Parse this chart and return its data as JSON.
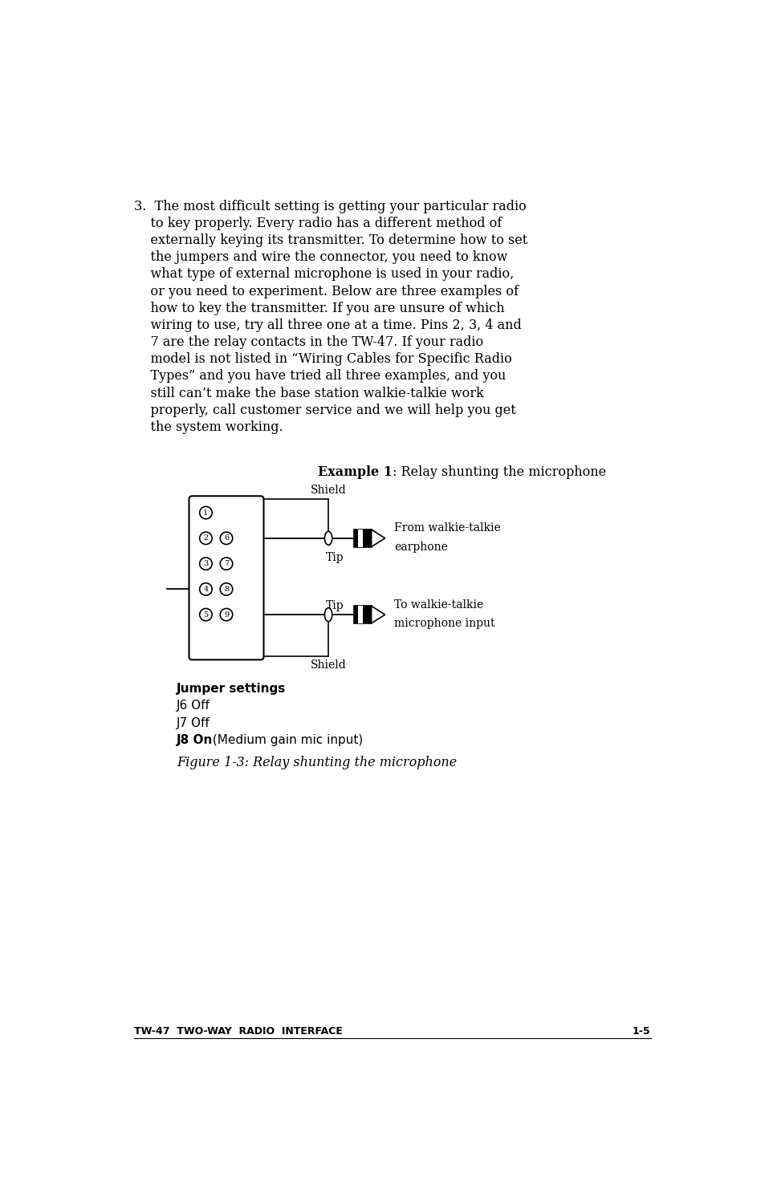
{
  "bg_color": "#ffffff",
  "page_width": 9.54,
  "page_height": 14.82,
  "body_lines": [
    "3.  The most difficult setting is getting your particular radio",
    "    to key properly. Every radio has a different method of",
    "    externally keying its transmitter. To determine how to set",
    "    the jumpers and wire the connector, you need to know",
    "    what type of external microphone is used in your radio,",
    "    or you need to experiment. Below are three examples of",
    "    how to key the transmitter. If you are unsure of which",
    "    wiring to use, try all three one at a time. Pins 2, 3, 4 and",
    "    7 are the relay contacts in the TW-47. If your radio",
    "    model is not listed in “Wiring Cables for Specific Radio",
    "    Types” and you have tried all three examples, and you",
    "    still can’t make the base station walkie-talkie work",
    "    properly, call customer service and we will help you get",
    "    the system working."
  ],
  "example_label_bold": "Example 1",
  "example_label_rest": ": Relay shunting the microphone",
  "jumper_title": "Jumper settings",
  "jumper_lines": [
    "J6 Off",
    "J7 Off",
    "J8 On (Medium gain mic input)"
  ],
  "figure_caption": "Figure 1-3: Relay shunting the microphone",
  "footer_left": "TW-47  TWO-WAY  RADIO  INTERFACE",
  "footer_right": "1-5",
  "shield_top": "Shield",
  "tip_top": "Tip",
  "shield_bottom": "Shield",
  "tip_bottom": "Tip",
  "label_right_top_line1": "From walkie-talkie",
  "label_right_top_line2": "earphone",
  "label_right_bot_line1": "To walkie-talkie",
  "label_right_bot_line2": "microphone input"
}
